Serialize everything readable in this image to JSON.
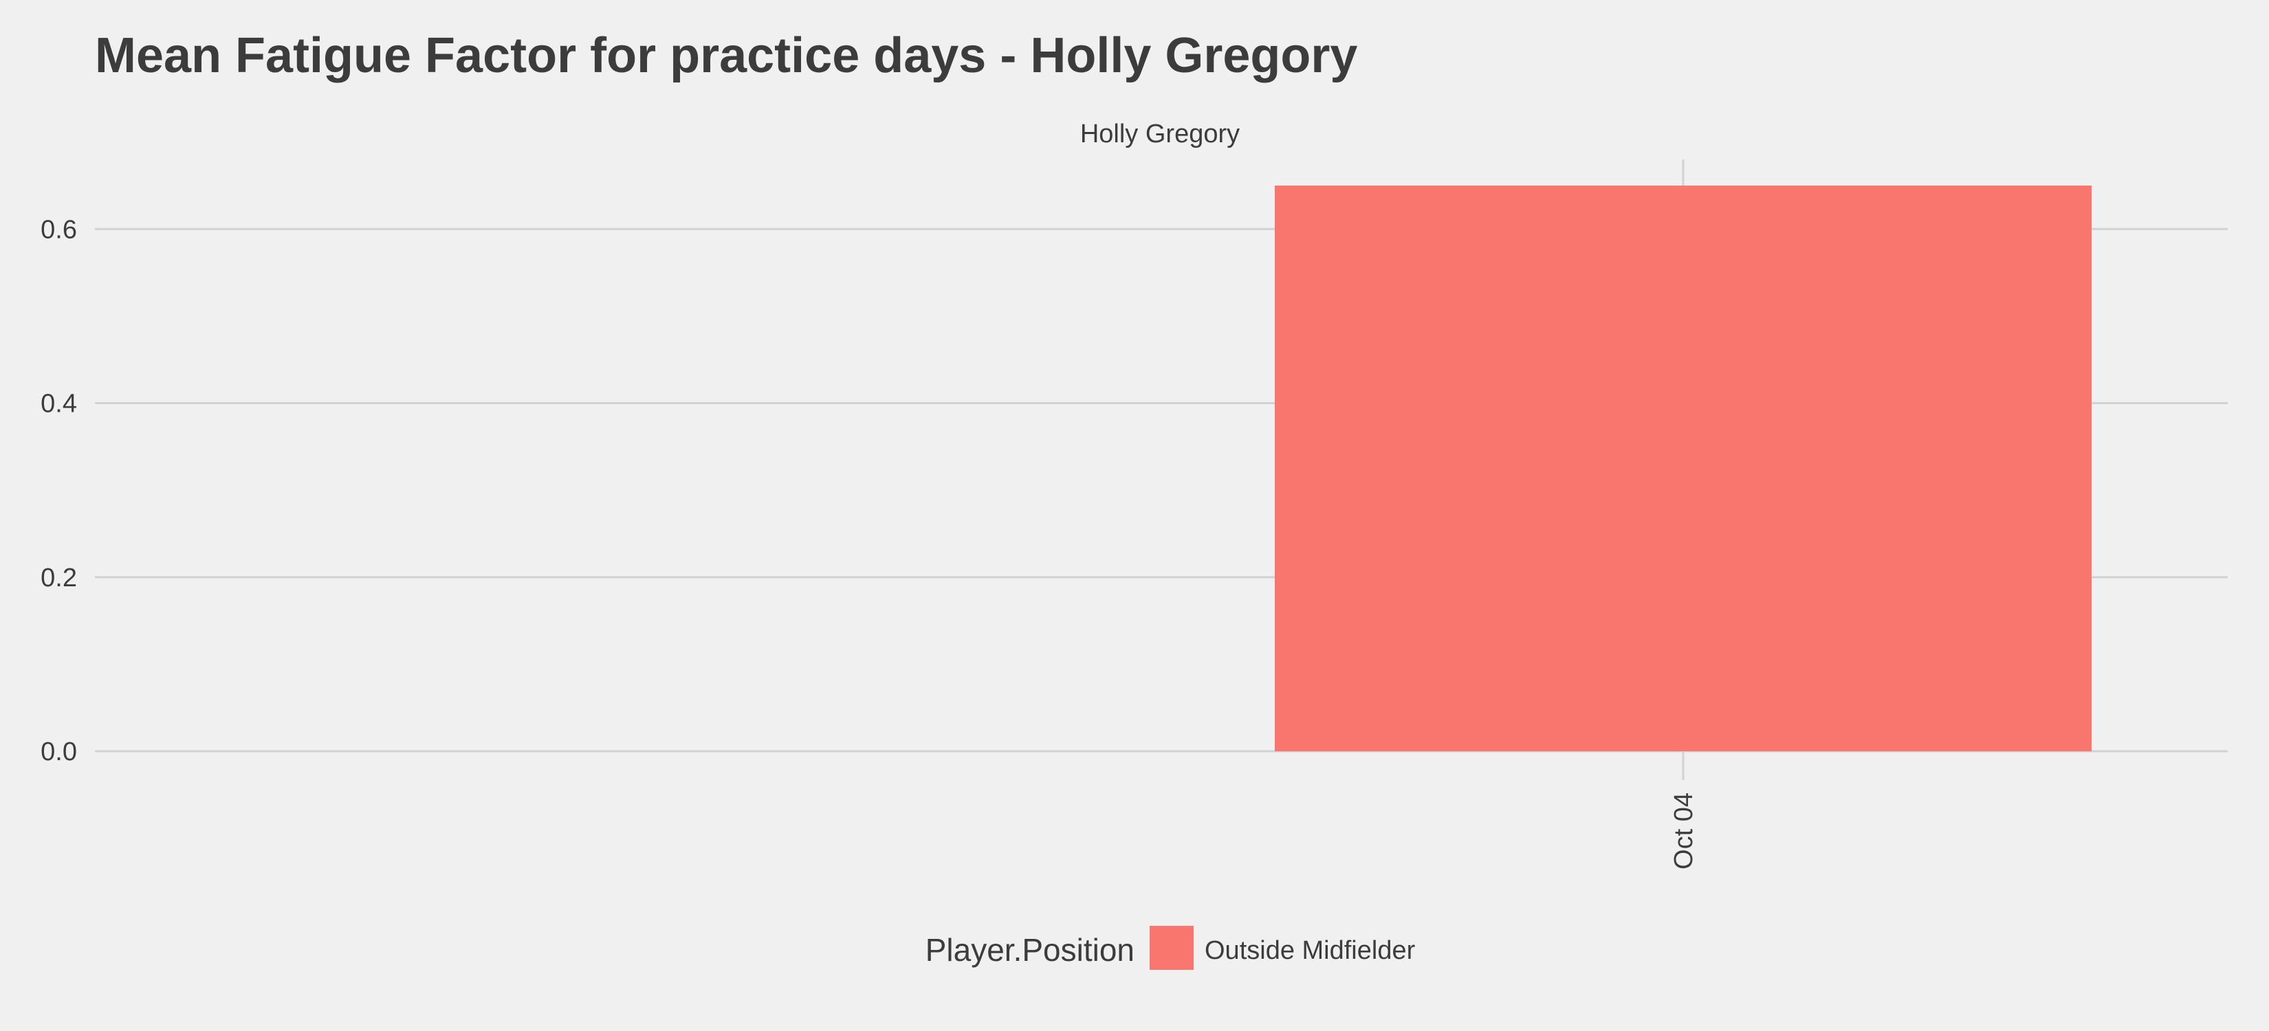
{
  "chart_data": {
    "type": "bar",
    "title": "Mean Fatigue Factor for practice days -  Holly Gregory",
    "facet_label": "Holly Gregory",
    "categories": [
      "Oct 04"
    ],
    "series": [
      {
        "name": "Outside Midfielder",
        "values": [
          0.65
        ],
        "color": "#f8766d"
      }
    ],
    "xlabel": "",
    "ylabel": "",
    "ylim": [
      0,
      0.68
    ],
    "y_ticks": [
      "0.0",
      "0.2",
      "0.4",
      "0.6"
    ],
    "y_tick_values": [
      0,
      0.2,
      0.4,
      0.6
    ],
    "grid": true,
    "legend": {
      "title": "Player.Position",
      "placement": "bottom",
      "items": [
        {
          "label": "Outside Midfielder",
          "color": "#f8766d"
        }
      ]
    },
    "colors": {
      "background": "#f0f0f0",
      "grid": "#d2d2d2",
      "text": "#3c3c3c"
    }
  }
}
